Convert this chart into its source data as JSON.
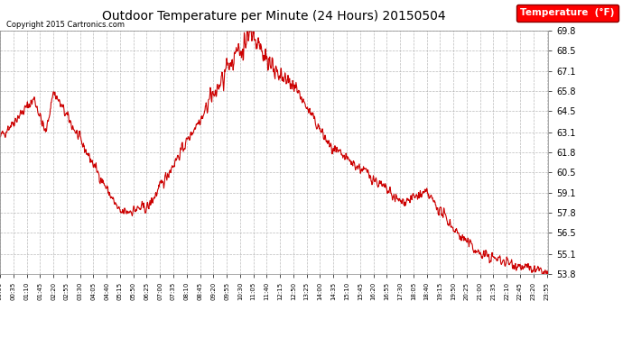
{
  "title": "Outdoor Temperature per Minute (24 Hours) 20150504",
  "copyright": "Copyright 2015 Cartronics.com",
  "legend_label": "Temperature  (°F)",
  "line_color": "#cc0000",
  "bg_color": "#ffffff",
  "grid_color": "#aaaaaa",
  "ylim": [
    53.8,
    69.8
  ],
  "yticks": [
    53.8,
    55.1,
    56.5,
    57.8,
    59.1,
    60.5,
    61.8,
    63.1,
    64.5,
    65.8,
    67.1,
    68.5,
    69.8
  ],
  "total_minutes": 1440,
  "xtick_step": 35
}
